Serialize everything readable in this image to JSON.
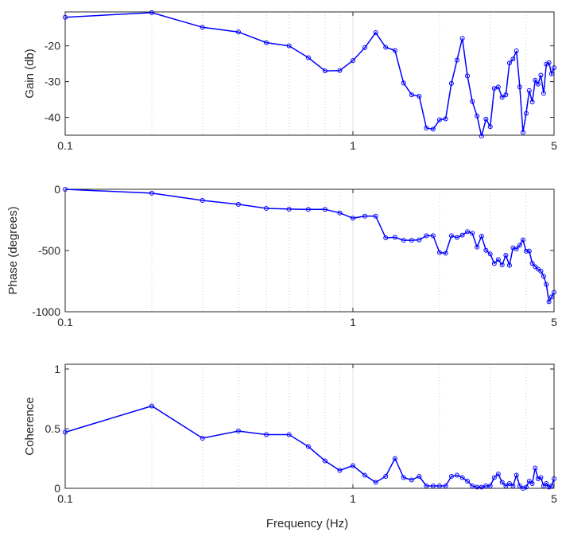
{
  "chart_data": [
    {
      "type": "line",
      "ylabel": "Gain (db)",
      "xscale": "log",
      "xlim": [
        0.1,
        5
      ],
      "ylim": [
        -45,
        -10.5
      ],
      "xticks": [
        0.1,
        1,
        5
      ],
      "xtick_labels": [
        "0.1",
        "1",
        "5"
      ],
      "yticks": [
        -40,
        -30,
        -20
      ],
      "ytick_labels": [
        "-40",
        "-30",
        "-20"
      ],
      "grid": "x-minor-dotted",
      "x": [
        0.1,
        0.2,
        0.3,
        0.4,
        0.5,
        0.6,
        0.7,
        0.8,
        0.9,
        1.0,
        1.1,
        1.2,
        1.3,
        1.4,
        1.5,
        1.6,
        1.7,
        1.8,
        1.9,
        2.0,
        2.1,
        2.2,
        2.3,
        2.4,
        2.5,
        2.6,
        2.7,
        2.8,
        2.9,
        3.0,
        3.1,
        3.2,
        3.3,
        3.4,
        3.5,
        3.6,
        3.7,
        3.8,
        3.9,
        4.0,
        4.1,
        4.2,
        4.3,
        4.4,
        4.5,
        4.6,
        4.7,
        4.8,
        4.9,
        5.0
      ],
      "y": [
        -12.0,
        -10.7,
        -14.8,
        -16.1,
        -19.1,
        -20.0,
        -23.3,
        -27.0,
        -26.9,
        -24.1,
        -20.5,
        -16.3,
        -20.4,
        -21.3,
        -30.4,
        -33.7,
        -34.1,
        -43.0,
        -43.3,
        -40.7,
        -40.4,
        -30.5,
        -24.0,
        -17.9,
        -28.4,
        -35.6,
        -39.6,
        -45.3,
        -40.5,
        -42.6,
        -31.9,
        -31.5,
        -34.4,
        -33.7,
        -24.8,
        -23.7,
        -21.4,
        -31.5,
        -44.2,
        -38.9,
        -32.5,
        -35.7,
        -29.6,
        -30.7,
        -28.2,
        -33.3,
        -25.1,
        -24.7,
        -27.8,
        -26.1
      ]
    },
    {
      "type": "line",
      "ylabel": "Phase (degrees)",
      "xscale": "log",
      "xlim": [
        0.1,
        5
      ],
      "ylim": [
        -1000,
        0
      ],
      "xticks": [
        0.1,
        1,
        5
      ],
      "xtick_labels": [
        "0.1",
        "1",
        "5"
      ],
      "yticks": [
        -1000,
        -500,
        0
      ],
      "ytick_labels": [
        "-1000",
        "-500",
        "0"
      ],
      "grid": "x-minor-dotted",
      "x": [
        0.1,
        0.2,
        0.3,
        0.4,
        0.5,
        0.6,
        0.7,
        0.8,
        0.9,
        1.0,
        1.1,
        1.2,
        1.3,
        1.4,
        1.5,
        1.6,
        1.7,
        1.8,
        1.9,
        2.0,
        2.1,
        2.2,
        2.3,
        2.4,
        2.5,
        2.6,
        2.7,
        2.8,
        2.9,
        3.0,
        3.1,
        3.2,
        3.3,
        3.4,
        3.5,
        3.6,
        3.7,
        3.8,
        3.9,
        4.0,
        4.1,
        4.2,
        4.3,
        4.4,
        4.5,
        4.6,
        4.7,
        4.8,
        4.9,
        5.0
      ],
      "y": [
        0,
        -32,
        -91,
        -123,
        -156,
        -162,
        -164,
        -164,
        -193,
        -236,
        -219,
        -219,
        -396,
        -392,
        -416,
        -416,
        -413,
        -379,
        -379,
        -517,
        -522,
        -379,
        -394,
        -374,
        -346,
        -359,
        -472,
        -383,
        -498,
        -528,
        -606,
        -574,
        -617,
        -539,
        -621,
        -478,
        -487,
        -457,
        -413,
        -506,
        -504,
        -604,
        -632,
        -652,
        -669,
        -710,
        -777,
        -918,
        -879,
        -842
      ]
    },
    {
      "type": "line",
      "ylabel": "Coherence",
      "xlabel": "Frequency (Hz)",
      "xscale": "log",
      "xlim": [
        0.1,
        5
      ],
      "ylim": [
        0,
        1.04
      ],
      "xticks": [
        0.1,
        1,
        5
      ],
      "xtick_labels": [
        "0.1",
        "1",
        "5"
      ],
      "yticks": [
        0,
        0.5,
        1
      ],
      "ytick_labels": [
        "0",
        "0.5",
        "1"
      ],
      "grid": "x-minor-dotted",
      "x": [
        0.1,
        0.2,
        0.3,
        0.4,
        0.5,
        0.6,
        0.7,
        0.8,
        0.9,
        1.0,
        1.1,
        1.2,
        1.3,
        1.4,
        1.5,
        1.6,
        1.7,
        1.8,
        1.9,
        2.0,
        2.1,
        2.2,
        2.3,
        2.4,
        2.5,
        2.6,
        2.7,
        2.8,
        2.9,
        3.0,
        3.1,
        3.2,
        3.3,
        3.4,
        3.5,
        3.6,
        3.7,
        3.8,
        3.9,
        4.0,
        4.1,
        4.2,
        4.3,
        4.4,
        4.5,
        4.6,
        4.7,
        4.8,
        4.9,
        5.0
      ],
      "y": [
        0.47,
        0.69,
        0.42,
        0.48,
        0.45,
        0.45,
        0.35,
        0.23,
        0.15,
        0.19,
        0.11,
        0.05,
        0.1,
        0.25,
        0.09,
        0.07,
        0.1,
        0.02,
        0.02,
        0.02,
        0.02,
        0.1,
        0.11,
        0.09,
        0.06,
        0.02,
        0.01,
        0.01,
        0.02,
        0.02,
        0.09,
        0.12,
        0.05,
        0.02,
        0.04,
        0.02,
        0.11,
        0.02,
        0.0,
        0.01,
        0.06,
        0.04,
        0.17,
        0.08,
        0.09,
        0.02,
        0.04,
        0.01,
        0.02,
        0.08
      ]
    }
  ],
  "colors": {
    "line": "#0000ff",
    "axis": "#262626",
    "grid": "#c8c8c8"
  }
}
